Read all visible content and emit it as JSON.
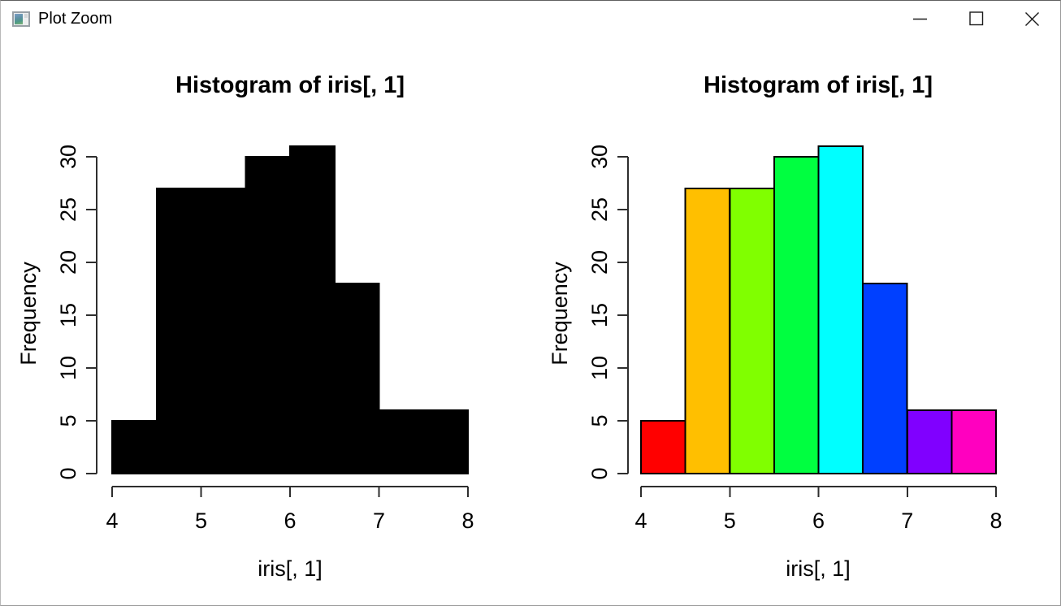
{
  "window": {
    "title": "Plot Zoom",
    "app_icon": "plot-thumbnail-icon",
    "controls": [
      {
        "name": "minimize",
        "icon": "minimize-icon"
      },
      {
        "name": "maximize",
        "icon": "maximize-icon"
      },
      {
        "name": "close",
        "icon": "close-icon"
      }
    ]
  },
  "chart_data": [
    {
      "type": "bar",
      "subtype": "histogram",
      "title": "Histogram of iris[, 1]",
      "xlabel": "iris[, 1]",
      "ylabel": "Frequency",
      "bin_breaks": [
        4,
        4.5,
        5,
        5.5,
        6,
        6.5,
        7,
        7.5,
        8
      ],
      "counts": [
        5,
        27,
        27,
        30,
        31,
        18,
        6,
        6
      ],
      "bar_colors": [
        "#000000",
        "#000000",
        "#000000",
        "#000000",
        "#000000",
        "#000000",
        "#000000",
        "#000000"
      ],
      "bar_border_color": "#000000",
      "x_ticks": [
        4,
        5,
        6,
        7,
        8
      ],
      "y_ticks": [
        0,
        5,
        10,
        15,
        20,
        25,
        30
      ],
      "xlim": [
        4,
        8
      ],
      "ylim": [
        0,
        31
      ],
      "grid": false,
      "legend": null
    },
    {
      "type": "bar",
      "subtype": "histogram",
      "title": "Histogram of iris[, 1]",
      "xlabel": "iris[, 1]",
      "ylabel": "Frequency",
      "bin_breaks": [
        4,
        4.5,
        5,
        5.5,
        6,
        6.5,
        7,
        7.5,
        8
      ],
      "counts": [
        5,
        27,
        27,
        30,
        31,
        18,
        6,
        6
      ],
      "bar_colors": [
        "#FF0000",
        "#FFBF00",
        "#80FF00",
        "#00FF40",
        "#00FFFF",
        "#0040FF",
        "#8000FF",
        "#FF00BF"
      ],
      "bar_border_color": "#000000",
      "x_ticks": [
        4,
        5,
        6,
        7,
        8
      ],
      "y_ticks": [
        0,
        5,
        10,
        15,
        20,
        25,
        30
      ],
      "xlim": [
        4,
        8
      ],
      "ylim": [
        0,
        31
      ],
      "grid": false,
      "legend": null
    }
  ]
}
